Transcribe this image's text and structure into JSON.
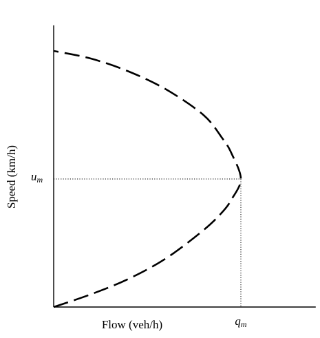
{
  "chart_data": {
    "type": "line",
    "title": "",
    "xlabel": "Flow (veh/h)",
    "ylabel": "Speed (km/h)",
    "grid": false,
    "legend": "none",
    "annotations": {
      "x_marker": {
        "base": "q",
        "sub": "m"
      },
      "y_marker": {
        "base": "u",
        "sub": "m"
      }
    },
    "series": [
      {
        "style": "dashed",
        "color": "#000000",
        "x": [
          0,
          0.2,
          0.4,
          0.6,
          0.8,
          0.9,
          0.95,
          1.0,
          0.95,
          0.9,
          0.8,
          0.6,
          0.4,
          0.2,
          0
        ],
        "y": [
          0,
          0.05,
          0.11,
          0.19,
          0.3,
          0.37,
          0.42,
          0.5,
          0.6,
          0.66,
          0.75,
          0.85,
          0.92,
          0.97,
          1.0
        ]
      }
    ],
    "xlim": [
      0,
      1.4
    ],
    "ylim": [
      0,
      1.1
    ]
  }
}
